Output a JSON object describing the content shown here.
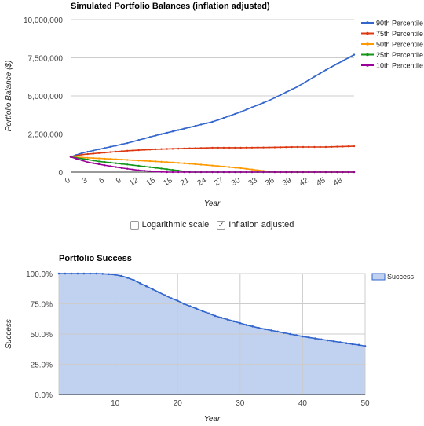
{
  "chart_data": [
    {
      "type": "line",
      "title": "Simulated Portfolio Balances (inflation adjusted)",
      "xlabel": "Year",
      "ylabel": "Portfolio Balance ($)",
      "xlim": [
        0,
        50
      ],
      "ylim": [
        0,
        10000000
      ],
      "yticks": [
        0,
        2500000,
        5000000,
        7500000,
        10000000
      ],
      "ytick_labels": [
        "0",
        "2,500,000",
        "5,000,000",
        "7,500,000",
        "10,000,000"
      ],
      "xticks": [
        0,
        3,
        6,
        9,
        12,
        15,
        18,
        21,
        24,
        27,
        30,
        33,
        36,
        39,
        42,
        45,
        48
      ],
      "xtick_labels": [
        "0",
        "3",
        "6",
        "9",
        "12",
        "15",
        "18",
        "21",
        "24",
        "27",
        "30",
        "33",
        "36",
        "39",
        "42",
        "45",
        "48"
      ],
      "legend_position": "right",
      "grid": true,
      "series": [
        {
          "name": "90th Percentile",
          "color": "#3366cc",
          "x": [
            0,
            2,
            5,
            10,
            15,
            20,
            25,
            27,
            30,
            35,
            40,
            45,
            50
          ],
          "y": [
            1000000,
            1250000,
            1500000,
            1900000,
            2400000,
            2850000,
            3300000,
            3550000,
            3950000,
            4700000,
            5600000,
            6700000,
            7700000
          ]
        },
        {
          "name": "75th Percentile",
          "color": "#dc3912",
          "x": [
            0,
            2,
            5,
            10,
            15,
            20,
            25,
            30,
            35,
            40,
            45,
            50
          ],
          "y": [
            1000000,
            1150000,
            1250000,
            1400000,
            1500000,
            1550000,
            1600000,
            1600000,
            1620000,
            1650000,
            1650000,
            1700000
          ]
        },
        {
          "name": "50th Percentile",
          "color": "#ff9900",
          "x": [
            0,
            5,
            10,
            15,
            20,
            25,
            30,
            34,
            36,
            50
          ],
          "y": [
            1000000,
            900000,
            800000,
            700000,
            580000,
            430000,
            260000,
            80000,
            0,
            0
          ]
        },
        {
          "name": "25th Percentile",
          "color": "#109618",
          "x": [
            0,
            5,
            10,
            15,
            19,
            21,
            50
          ],
          "y": [
            1000000,
            700000,
            500000,
            280000,
            100000,
            0,
            0
          ]
        },
        {
          "name": "10th Percentile",
          "color": "#990099",
          "x": [
            0,
            3,
            6,
            9,
            12,
            15,
            17,
            50
          ],
          "y": [
            1000000,
            650000,
            450000,
            270000,
            120000,
            30000,
            0,
            0
          ]
        }
      ]
    },
    {
      "type": "area",
      "title": "Portfolio Success",
      "xlabel": "Year",
      "ylabel": "Success",
      "xlim": [
        1,
        50
      ],
      "ylim": [
        0,
        100
      ],
      "yticks": [
        0,
        25,
        50,
        75,
        100
      ],
      "ytick_labels": [
        "0.0%",
        "25.0%",
        "50.0%",
        "75.0%",
        "100.0%"
      ],
      "xticks": [
        10,
        20,
        30,
        40,
        50
      ],
      "xtick_labels": [
        "10",
        "20",
        "30",
        "40",
        "50"
      ],
      "legend_position": "right",
      "grid": true,
      "series": [
        {
          "name": "Success",
          "color": "#3366cc",
          "fill": "#c1d1f0",
          "x": [
            1,
            2,
            3,
            4,
            5,
            6,
            7,
            8,
            9,
            10,
            11,
            12,
            13,
            14,
            15,
            16,
            17,
            18,
            19,
            20,
            21,
            22,
            23,
            24,
            25,
            26,
            27,
            28,
            29,
            30,
            31,
            32,
            33,
            34,
            35,
            36,
            37,
            38,
            39,
            40,
            41,
            42,
            43,
            44,
            45,
            46,
            47,
            48,
            49,
            50
          ],
          "y": [
            100,
            100,
            100,
            100,
            100,
            100,
            100,
            99.8,
            99.5,
            99,
            98,
            96.5,
            94.5,
            92,
            89.5,
            87,
            84.5,
            82,
            79.5,
            77.5,
            75,
            73,
            71,
            69,
            67,
            65,
            63.5,
            62,
            60.5,
            59,
            57.5,
            56.3,
            55,
            54,
            53,
            52,
            51,
            50,
            49,
            48,
            47.2,
            46.4,
            45.6,
            44.8,
            44,
            43.2,
            42.4,
            41.6,
            41,
            40
          ]
        }
      ]
    }
  ],
  "controls": {
    "log_scale": {
      "label": "Logarithmic scale",
      "checked": false
    },
    "inflation": {
      "label": "Inflation adjusted",
      "checked": true
    }
  }
}
